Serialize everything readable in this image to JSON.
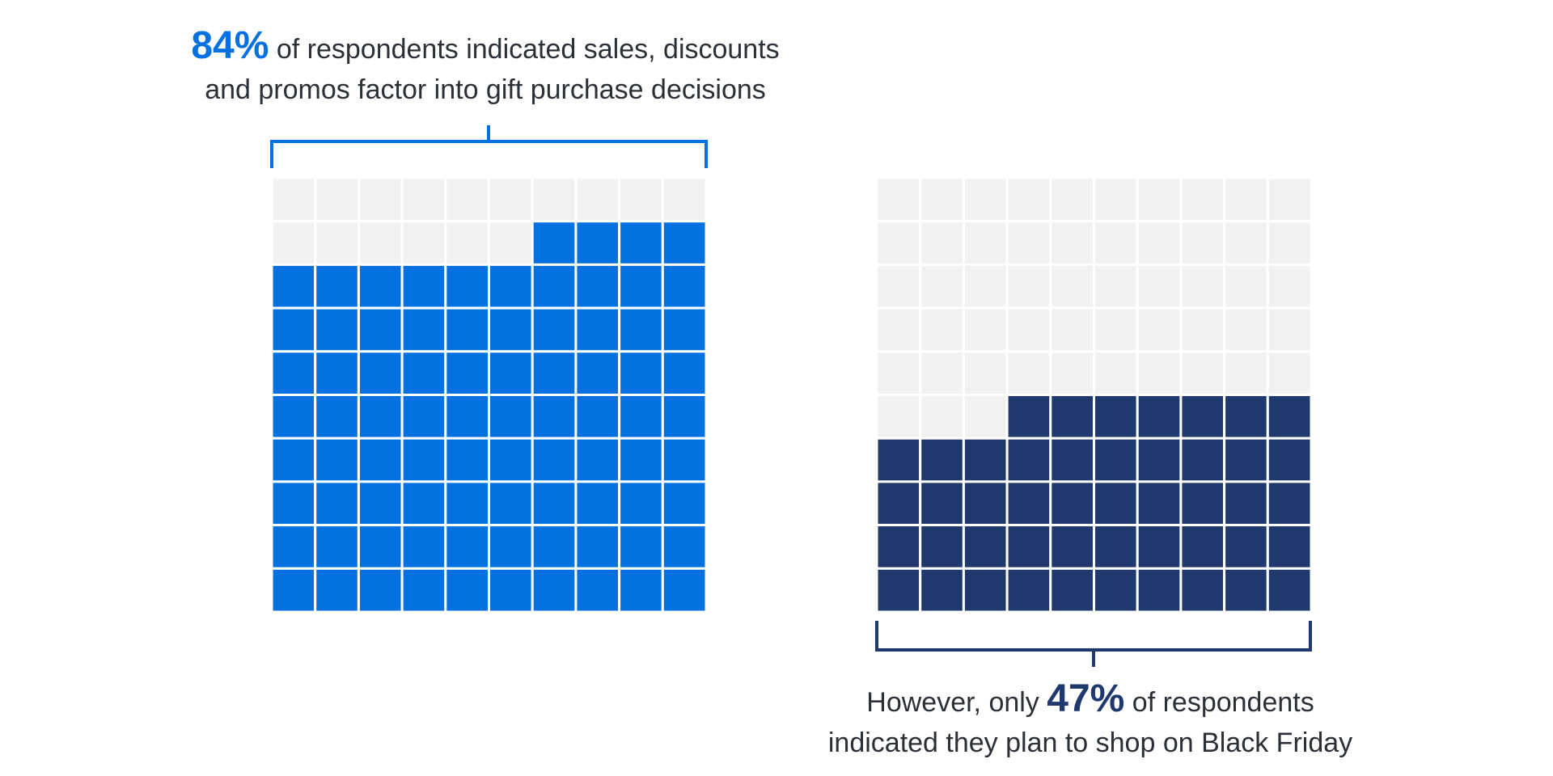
{
  "colors": {
    "empty_cell": "#f1f1f1",
    "grid_line": "#ffffff",
    "accent_blue": "#0570e0",
    "accent_navy": "#1f386e"
  },
  "captions": {
    "left": {
      "highlight": "84%",
      "line1_rest": " of respondents indicated sales, discounts",
      "line2": "and promos factor into gift purchase decisions"
    },
    "right": {
      "line1_pre": "However, only ",
      "highlight": "47%",
      "line1_post": " of respondents",
      "line2": "indicated they plan to shop on Black Friday"
    }
  },
  "chart_data": [
    {
      "type": "waffle",
      "rows": 10,
      "cols": 10,
      "value": 84,
      "fill_color": "#0570e0",
      "empty_color": "#f1f1f1"
    },
    {
      "type": "waffle",
      "rows": 10,
      "cols": 10,
      "value": 47,
      "fill_color": "#1f386e",
      "empty_color": "#f1f1f1"
    }
  ]
}
